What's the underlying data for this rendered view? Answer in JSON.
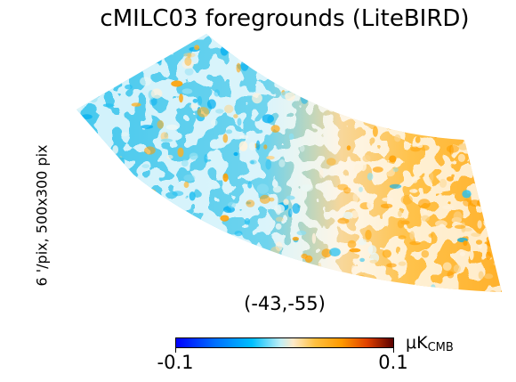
{
  "title": "cMILC03 foregrounds (LiteBIRD)",
  "side_label": "6 '/pix,   500x300 pix",
  "coord_label": "(-43,-55)",
  "colorbar": {
    "min_label": "-0.1",
    "max_label": "0.1",
    "unit_main": "μK",
    "unit_sub": "CMB",
    "colors": [
      "#0000ff",
      "#0070ff",
      "#00c0ff",
      "#bfeef5",
      "#fde9c8",
      "#ffc040",
      "#ff9a00",
      "#e04000",
      "#5a0000"
    ]
  }
}
